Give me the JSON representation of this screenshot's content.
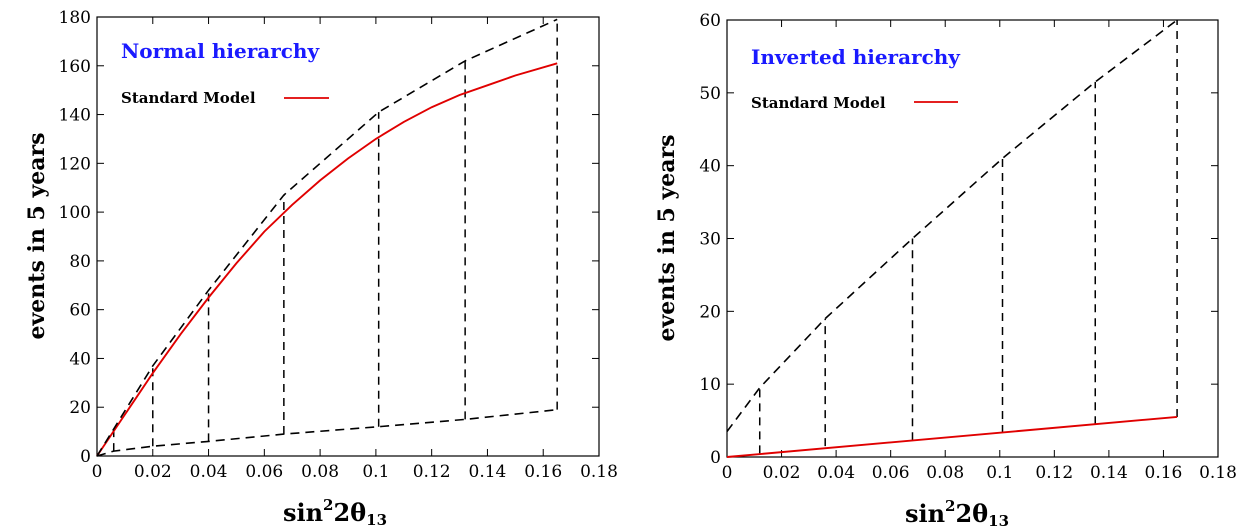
{
  "chart_data": [
    {
      "type": "line",
      "title": "Normal hierarchy",
      "title_color": "#1a1aff",
      "xlabel_parts": {
        "pre": "sin",
        "sup": "2",
        "mid": "2θ",
        "sub": "13"
      },
      "ylabel": "events in 5 years",
      "xlim": [
        0,
        0.18
      ],
      "ylim": [
        0,
        180
      ],
      "xticks": [
        0,
        0.02,
        0.04,
        0.06,
        0.08,
        0.1,
        0.12,
        0.14,
        0.16,
        0.18
      ],
      "xtick_labels": [
        "0",
        "0.02",
        "0.04",
        "0.06",
        "0.08",
        "0.1",
        "0.12",
        "0.14",
        "0.16",
        "0.18"
      ],
      "yticks": [
        0,
        20,
        40,
        60,
        80,
        100,
        120,
        140,
        160,
        180
      ],
      "ytick_labels": [
        "0",
        "20",
        "40",
        "60",
        "80",
        "100",
        "120",
        "140",
        "160",
        "180"
      ],
      "legend": "top-left",
      "series": [
        {
          "name": "Standard Model",
          "color": "#e00000",
          "dash": false,
          "x": [
            0,
            0.01,
            0.02,
            0.03,
            0.04,
            0.05,
            0.06,
            0.07,
            0.08,
            0.09,
            0.1,
            0.11,
            0.12,
            0.13,
            0.14,
            0.15,
            0.165
          ],
          "y": [
            0,
            17,
            34,
            50,
            65,
            79,
            92,
            103,
            113,
            122,
            130,
            137,
            143,
            148,
            152,
            156,
            161
          ]
        },
        {
          "color": "#000000",
          "dash": true,
          "x": [
            0,
            0.02,
            0.04,
            0.067,
            0.101,
            0.132,
            0.165
          ],
          "y": [
            0,
            37,
            68,
            107,
            141,
            162,
            179
          ]
        },
        {
          "color": "#000000",
          "dash": true,
          "x": [
            0,
            0.006,
            0.02,
            0.04,
            0.067,
            0.101,
            0.132,
            0.165
          ],
          "y": [
            0,
            2,
            4,
            6,
            9,
            12,
            15,
            19
          ]
        }
      ],
      "vlines": [
        {
          "x": 0.006,
          "y0": 2,
          "y1": 12
        },
        {
          "x": 0.02,
          "y0": 4,
          "y1": 37
        },
        {
          "x": 0.04,
          "y0": 6,
          "y1": 68
        },
        {
          "x": 0.067,
          "y0": 9,
          "y1": 107
        },
        {
          "x": 0.101,
          "y0": 12,
          "y1": 141
        },
        {
          "x": 0.132,
          "y0": 15,
          "y1": 162
        },
        {
          "x": 0.165,
          "y0": 19,
          "y1": 179
        }
      ]
    },
    {
      "type": "line",
      "title": "Inverted hierarchy",
      "title_color": "#1a1aff",
      "xlabel_parts": {
        "pre": "sin",
        "sup": "2",
        "mid": "2θ",
        "sub": "13"
      },
      "ylabel": "events in 5 years",
      "xlim": [
        0,
        0.18
      ],
      "ylim": [
        0,
        60
      ],
      "xticks": [
        0,
        0.02,
        0.04,
        0.06,
        0.08,
        0.1,
        0.12,
        0.14,
        0.16,
        0.18
      ],
      "xtick_labels": [
        "0",
        "0.02",
        "0.04",
        "0.06",
        "0.08",
        "0.1",
        "0.12",
        "0.14",
        "0.16",
        "0.18"
      ],
      "yticks": [
        0,
        10,
        20,
        30,
        40,
        50,
        60
      ],
      "ytick_labels": [
        "0",
        "10",
        "20",
        "30",
        "40",
        "50",
        "60"
      ],
      "legend": "top-left",
      "series": [
        {
          "name": "Standard Model",
          "color": "#e00000",
          "dash": false,
          "x": [
            0,
            0.165
          ],
          "y": [
            0,
            5.5
          ]
        },
        {
          "color": "#000000",
          "dash": true,
          "x": [
            0,
            0.012,
            0.036,
            0.068,
            0.101,
            0.135,
            0.165
          ],
          "y": [
            3.5,
            9.5,
            19,
            30,
            41,
            51.5,
            60
          ]
        }
      ],
      "vlines": [
        {
          "x": 0.012,
          "y0": 0.5,
          "y1": 9.5
        },
        {
          "x": 0.036,
          "y0": 1.5,
          "y1": 19
        },
        {
          "x": 0.068,
          "y0": 2.3,
          "y1": 30
        },
        {
          "x": 0.101,
          "y0": 3.3,
          "y1": 41
        },
        {
          "x": 0.135,
          "y0": 4.5,
          "y1": 51.5
        },
        {
          "x": 0.165,
          "y0": 5.5,
          "y1": 60
        }
      ]
    }
  ]
}
